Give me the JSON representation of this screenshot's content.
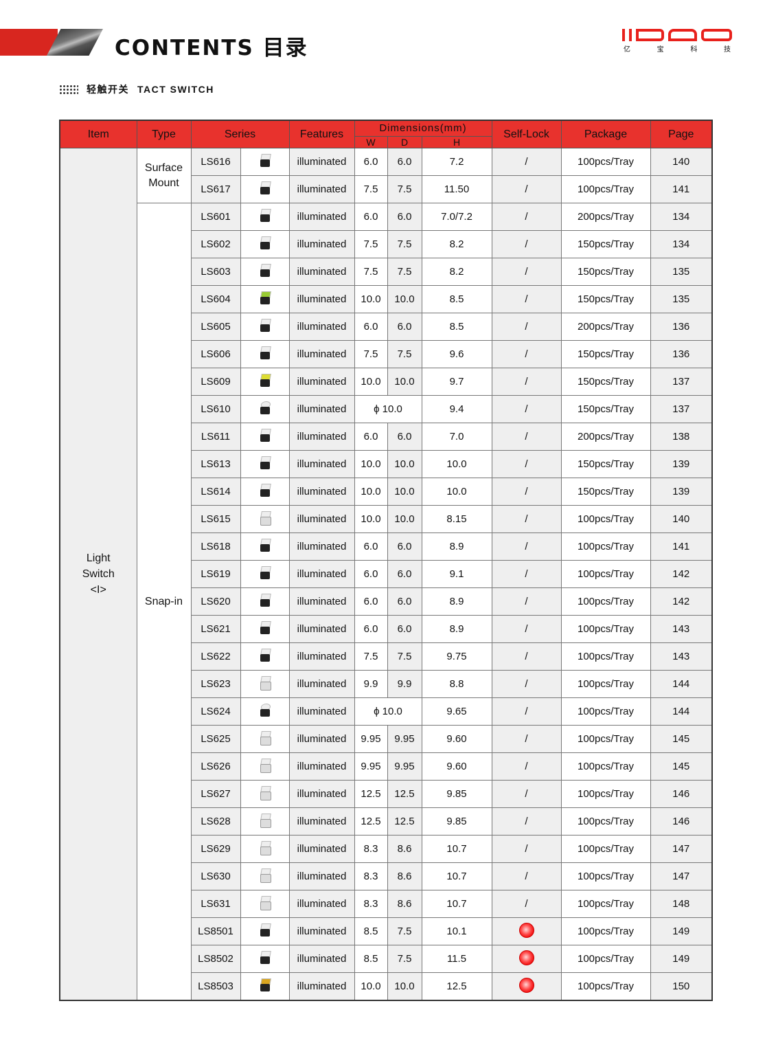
{
  "header": {
    "title": "CONTENTS 目录",
    "logo_text": "IBAO",
    "logo_cn": [
      "亿",
      "宝",
      "科",
      "技"
    ],
    "subtitle_cn": "轻触开关",
    "subtitle_en": "TACT SWITCH"
  },
  "table": {
    "headers": {
      "item": "Item",
      "type": "Type",
      "series": "Series",
      "features": "Features",
      "dimensions": "Dimensions(mm)",
      "w": "W",
      "d": "D",
      "h": "H",
      "selflock": "Self-Lock",
      "package": "Package",
      "page": "Page"
    },
    "item": "Light Switch <I>",
    "types": [
      {
        "label": "Surface Mount",
        "rows": 2
      },
      {
        "label": "Snap-in",
        "rows": 29
      }
    ],
    "colors": {
      "header": "#e8322d",
      "lock": "#ff3333"
    },
    "rows": [
      {
        "series": "LS616",
        "img": "dark",
        "features": "illuminated",
        "w": "6.0",
        "d": "6.0",
        "h": "7.2",
        "lock": "/",
        "package": "100pcs/Tray",
        "page": "140"
      },
      {
        "series": "LS617",
        "img": "dark",
        "features": "illuminated",
        "w": "7.5",
        "d": "7.5",
        "h": "11.50",
        "lock": "/",
        "package": "100pcs/Tray",
        "page": "141"
      },
      {
        "series": "LS601",
        "img": "dark",
        "features": "illuminated",
        "w": "6.0",
        "d": "6.0",
        "h": "7.0/7.2",
        "lock": "/",
        "package": "200pcs/Tray",
        "page": "134"
      },
      {
        "series": "LS602",
        "img": "dark",
        "features": "illuminated",
        "w": "7.5",
        "d": "7.5",
        "h": "8.2",
        "lock": "/",
        "package": "150pcs/Tray",
        "page": "134"
      },
      {
        "series": "LS603",
        "img": "dark",
        "features": "illuminated",
        "w": "7.5",
        "d": "7.5",
        "h": "8.2",
        "lock": "/",
        "package": "150pcs/Tray",
        "page": "135"
      },
      {
        "series": "LS604",
        "img": "green",
        "features": "illuminated",
        "w": "10.0",
        "d": "10.0",
        "h": "8.5",
        "lock": "/",
        "package": "150pcs/Tray",
        "page": "135"
      },
      {
        "series": "LS605",
        "img": "dark",
        "features": "illuminated",
        "w": "6.0",
        "d": "6.0",
        "h": "8.5",
        "lock": "/",
        "package": "200pcs/Tray",
        "page": "136"
      },
      {
        "series": "LS606",
        "img": "dark",
        "features": "illuminated",
        "w": "7.5",
        "d": "7.5",
        "h": "9.6",
        "lock": "/",
        "package": "150pcs/Tray",
        "page": "136"
      },
      {
        "series": "LS609",
        "img": "yellow",
        "features": "illuminated",
        "w": "10.0",
        "d": "10.0",
        "h": "9.7",
        "lock": "/",
        "package": "150pcs/Tray",
        "page": "137"
      },
      {
        "series": "LS610",
        "img": "round",
        "features": "illuminated",
        "wd": "ϕ 10.0",
        "h": "9.4",
        "lock": "/",
        "package": "150pcs/Tray",
        "page": "137"
      },
      {
        "series": "LS611",
        "img": "dark",
        "features": "illuminated",
        "w": "6.0",
        "d": "6.0",
        "h": "7.0",
        "lock": "/",
        "package": "200pcs/Tray",
        "page": "138"
      },
      {
        "series": "LS613",
        "img": "dark",
        "features": "illuminated",
        "w": "10.0",
        "d": "10.0",
        "h": "10.0",
        "lock": "/",
        "package": "150pcs/Tray",
        "page": "139"
      },
      {
        "series": "LS614",
        "img": "dark",
        "features": "illuminated",
        "w": "10.0",
        "d": "10.0",
        "h": "10.0",
        "lock": "/",
        "package": "150pcs/Tray",
        "page": "139"
      },
      {
        "series": "LS615",
        "img": "white",
        "features": "illuminated",
        "w": "10.0",
        "d": "10.0",
        "h": "8.15",
        "lock": "/",
        "package": "100pcs/Tray",
        "page": "140"
      },
      {
        "series": "LS618",
        "img": "dark",
        "features": "illuminated",
        "w": "6.0",
        "d": "6.0",
        "h": "8.9",
        "lock": "/",
        "package": "100pcs/Tray",
        "page": "141"
      },
      {
        "series": "LS619",
        "img": "dark",
        "features": "illuminated",
        "w": "6.0",
        "d": "6.0",
        "h": "9.1",
        "lock": "/",
        "package": "100pcs/Tray",
        "page": "142"
      },
      {
        "series": "LS620",
        "img": "dark",
        "features": "illuminated",
        "w": "6.0",
        "d": "6.0",
        "h": "8.9",
        "lock": "/",
        "package": "100pcs/Tray",
        "page": "142"
      },
      {
        "series": "LS621",
        "img": "dark",
        "features": "illuminated",
        "w": "6.0",
        "d": "6.0",
        "h": "8.9",
        "lock": "/",
        "package": "100pcs/Tray",
        "page": "143"
      },
      {
        "series": "LS622",
        "img": "dark",
        "features": "illuminated",
        "w": "7.5",
        "d": "7.5",
        "h": "9.75",
        "lock": "/",
        "package": "100pcs/Tray",
        "page": "143"
      },
      {
        "series": "LS623",
        "img": "white",
        "features": "illuminated",
        "w": "9.9",
        "d": "9.9",
        "h": "8.8",
        "lock": "/",
        "package": "100pcs/Tray",
        "page": "144"
      },
      {
        "series": "LS624",
        "img": "round",
        "features": "illuminated",
        "wd": "ϕ 10.0",
        "h": "9.65",
        "lock": "/",
        "package": "100pcs/Tray",
        "page": "144"
      },
      {
        "series": "LS625",
        "img": "white",
        "features": "illuminated",
        "w": "9.95",
        "d": "9.95",
        "h": "9.60",
        "lock": "/",
        "package": "100pcs/Tray",
        "page": "145"
      },
      {
        "series": "LS626",
        "img": "white",
        "features": "illuminated",
        "w": "9.95",
        "d": "9.95",
        "h": "9.60",
        "lock": "/",
        "package": "100pcs/Tray",
        "page": "145"
      },
      {
        "series": "LS627",
        "img": "white",
        "features": "illuminated",
        "w": "12.5",
        "d": "12.5",
        "h": "9.85",
        "lock": "/",
        "package": "100pcs/Tray",
        "page": "146"
      },
      {
        "series": "LS628",
        "img": "white",
        "features": "illuminated",
        "w": "12.5",
        "d": "12.5",
        "h": "9.85",
        "lock": "/",
        "package": "100pcs/Tray",
        "page": "146"
      },
      {
        "series": "LS629",
        "img": "white",
        "features": "illuminated",
        "w": "8.3",
        "d": "8.6",
        "h": "10.7",
        "lock": "/",
        "package": "100pcs/Tray",
        "page": "147"
      },
      {
        "series": "LS630",
        "img": "white",
        "features": "illuminated",
        "w": "8.3",
        "d": "8.6",
        "h": "10.7",
        "lock": "/",
        "package": "100pcs/Tray",
        "page": "147"
      },
      {
        "series": "LS631",
        "img": "white",
        "features": "illuminated",
        "w": "8.3",
        "d": "8.6",
        "h": "10.7",
        "lock": "/",
        "package": "100pcs/Tray",
        "page": "148"
      },
      {
        "series": "LS8501",
        "img": "dark",
        "features": "illuminated",
        "w": "8.5",
        "d": "7.5",
        "h": "10.1",
        "lock": "red-dot",
        "package": "100pcs/Tray",
        "page": "149"
      },
      {
        "series": "LS8502",
        "img": "dark",
        "features": "illuminated",
        "w": "8.5",
        "d": "7.5",
        "h": "11.5",
        "lock": "red-dot",
        "package": "100pcs/Tray",
        "page": "149"
      },
      {
        "series": "LS8503",
        "img": "gold",
        "features": "illuminated",
        "w": "10.0",
        "d": "10.0",
        "h": "12.5",
        "lock": "red-dot",
        "package": "100pcs/Tray",
        "page": "150"
      }
    ]
  }
}
